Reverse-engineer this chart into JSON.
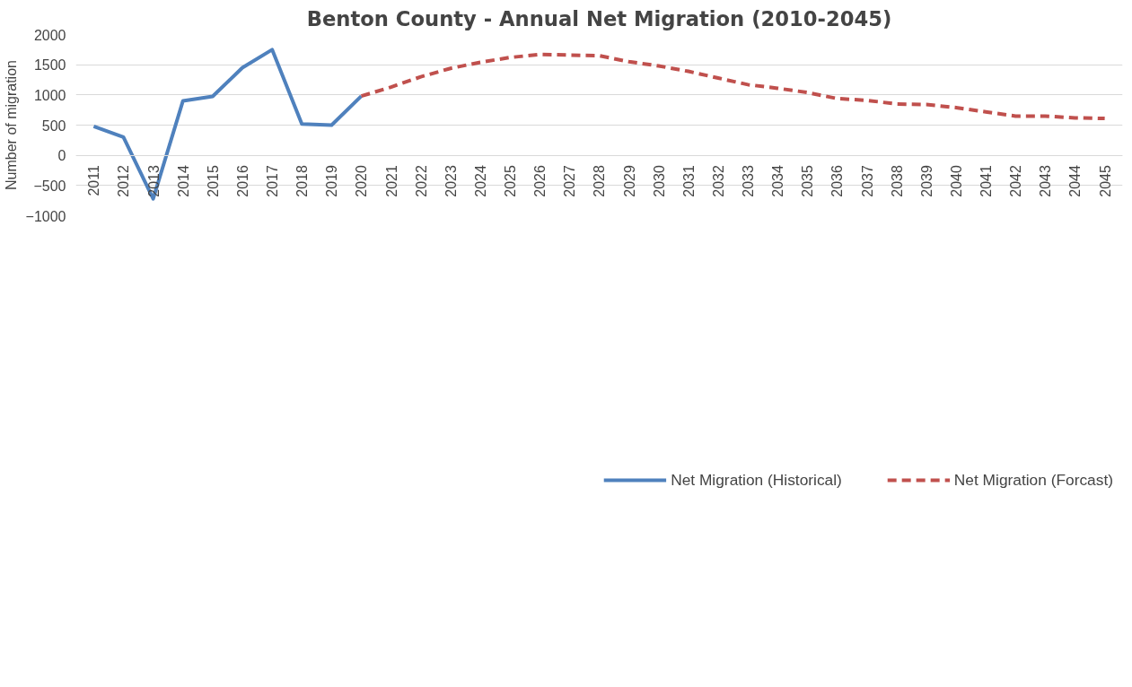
{
  "chart_data": {
    "type": "line",
    "title": "Benton County - Annual Net Migration (2010-2045)",
    "ylabel": "Number of migration",
    "categories": [
      "2011",
      "2012",
      "2013",
      "2014",
      "2015",
      "2016",
      "2017",
      "2018",
      "2019",
      "2020",
      "2021",
      "2022",
      "2023",
      "2024",
      "2025",
      "2026",
      "2027",
      "2028",
      "2029",
      "2030",
      "2031",
      "2032",
      "2033",
      "2034",
      "2035",
      "2036",
      "2037",
      "2038",
      "2039",
      "2040",
      "2041",
      "2042",
      "2043",
      "2044",
      "2045"
    ],
    "series": [
      {
        "name": "Net Migration (Historical)",
        "color": "#4f81bd",
        "line_style": "solid",
        "values": [
          480,
          300,
          -720,
          900,
          975,
          1450,
          1750,
          520,
          500,
          980,
          null,
          null,
          null,
          null,
          null,
          null,
          null,
          null,
          null,
          null,
          null,
          null,
          null,
          null,
          null,
          null,
          null,
          null,
          null,
          null,
          null,
          null,
          null,
          null,
          null
        ]
      },
      {
        "name": "Net Migration (Forcast)",
        "color": "#c0504d",
        "line_style": "dashed",
        "values": [
          null,
          null,
          null,
          null,
          null,
          null,
          null,
          null,
          null,
          980,
          1130,
          1300,
          1440,
          1540,
          1620,
          1670,
          1660,
          1650,
          1550,
          1480,
          1390,
          1280,
          1170,
          1110,
          1040,
          940,
          910,
          850,
          840,
          790,
          720,
          650,
          650,
          620,
          610
        ]
      }
    ],
    "ylim": [
      -1000,
      2000
    ],
    "yticks": [
      -1000,
      -500,
      0,
      500,
      1000,
      1500,
      2000
    ],
    "grid": "y",
    "legend": "bottom",
    "marker": "none"
  }
}
